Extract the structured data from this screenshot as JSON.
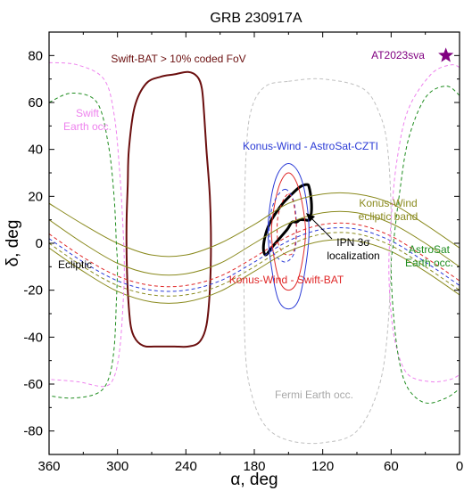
{
  "chart_data": {
    "type": "line",
    "title": "GRB 230917A",
    "xlabel": "α, deg",
    "ylabel": "δ, deg",
    "xlim": [
      360,
      0
    ],
    "ylim": [
      -90,
      90
    ],
    "x_ticks": [
      360,
      300,
      240,
      180,
      120,
      60,
      0
    ],
    "y_ticks": [
      80,
      60,
      40,
      20,
      0,
      -20,
      -40,
      -60,
      -80
    ],
    "colors": {
      "swift_bat": "#6b0f0f",
      "konus_astrosat": "#2b3bd6",
      "konus_swift": "#e02828",
      "ipn": "#000000",
      "ecliptic": "#8a8a1e",
      "swift_earth": "#ee82ee",
      "astrosat_earth": "#1e8c1e",
      "fermi_earth": "#c0c0c0",
      "transient": "#800080"
    },
    "annotations": {
      "swift_bat_fov": "Swift-BAT > 10% coded FoV",
      "transient": "AT2023sva",
      "swift_earth": "Swift\nEarth occ.",
      "konus_astrosat": "Konus-Wind - AstroSat-CZTI",
      "konus_ecliptic_band": "Konus-Wind\necliptic band",
      "ipn": "IPN 3σ\nlocalization",
      "astrosat_earth": "AstroSat\nEarth occ.",
      "ecliptic": "Ecliptic",
      "konus_swift": "Konus-Wind - Swift-BAT",
      "fermi_earth": "Fermi Earth occ."
    },
    "series": [
      {
        "key": "swift_bat",
        "style": "solid",
        "closed": true,
        "x": [
          290,
          291,
          292,
          292,
          291,
          289,
          287,
          284,
          280,
          275,
          268,
          260,
          250,
          238,
          228,
          222,
          219,
          218,
          219,
          222,
          224,
          226,
          230,
          238,
          250,
          262,
          275,
          285,
          290
        ],
        "y": [
          40,
          25,
          10,
          -5,
          -20,
          -33,
          -38,
          -41,
          -43,
          -44,
          -44,
          -44,
          -44,
          -44,
          -42,
          -35,
          -20,
          0,
          20,
          40,
          55,
          66,
          71,
          73,
          72,
          71,
          68,
          58,
          40
        ]
      },
      {
        "key": "ipn",
        "style": "thick",
        "closed": true,
        "x": [
          132,
          134,
          140,
          147,
          155,
          161,
          166,
          170,
          172,
          170,
          165,
          158,
          151,
          147,
          143,
          140,
          136,
          132,
          130,
          130,
          132
        ],
        "y": [
          24,
          25,
          24,
          21,
          17,
          13,
          9,
          4,
          -2,
          -5,
          -2,
          2,
          6,
          9,
          9,
          10,
          10,
          10,
          13,
          18,
          24
        ]
      },
      {
        "key": "konus_astrosat",
        "style": "solid",
        "closed": true,
        "x": [
          150,
          141,
          135,
          132,
          135,
          141,
          150,
          159,
          165,
          168,
          165,
          159,
          150
        ],
        "y": [
          34,
          30,
          20,
          5,
          -10,
          -24,
          -28,
          -24,
          -10,
          5,
          20,
          30,
          34
        ]
      },
      {
        "key": "konus_swift",
        "style": "solid",
        "closed": true,
        "x": [
          150,
          143,
          138,
          135,
          138,
          143,
          150,
          157,
          162,
          165,
          162,
          157,
          150
        ],
        "y": [
          30,
          26,
          17,
          5,
          -8,
          -17,
          -20,
          -17,
          -8,
          5,
          17,
          26,
          30
        ]
      },
      {
        "key": "konus_astrosat",
        "style": "dashed",
        "closed": true,
        "x": [
          153,
          147,
          144,
          143,
          144,
          147,
          153,
          160,
          165,
          167,
          165,
          160,
          153
        ],
        "y": [
          23,
          20,
          14,
          6,
          -2,
          -6,
          -8,
          -6,
          -2,
          6,
          14,
          20,
          23
        ]
      },
      {
        "key": "konus_swift",
        "style": "dashed",
        "closed": true,
        "x": [
          150,
          146,
          144,
          143,
          144,
          146,
          150,
          155,
          159,
          160,
          159,
          155,
          150
        ],
        "y": [
          21,
          18,
          12,
          6,
          0,
          -4,
          -5,
          -4,
          0,
          6,
          12,
          18,
          21
        ]
      },
      {
        "key": "ecliptic",
        "style": "solid",
        "closed": false,
        "x": [
          360,
          330,
          300,
          270,
          240,
          210,
          180,
          150,
          120,
          90,
          60,
          30,
          0
        ],
        "y": [
          10,
          0,
          -8.5,
          -13,
          -13,
          -8.5,
          0,
          8.5,
          13,
          13,
          8.5,
          0,
          -10
        ]
      },
      {
        "key": "ecliptic",
        "style": "solid",
        "closed": false,
        "x": [
          360,
          330,
          300,
          270,
          240,
          210,
          180,
          150,
          120,
          90,
          60,
          30,
          0
        ],
        "y": [
          -2,
          -12,
          -20.5,
          -25,
          -25,
          -20.5,
          -12,
          -3.5,
          1,
          1,
          -3.5,
          -12,
          -22
        ]
      },
      {
        "key": "ecliptic",
        "style": "solid",
        "closed": false,
        "x": [
          360,
          330,
          300,
          270,
          240,
          210,
          180,
          150,
          120,
          90,
          60,
          30,
          0
        ],
        "y": [
          17,
          8,
          0,
          -5,
          -5,
          0,
          8,
          17,
          21,
          21,
          17,
          8,
          -2
        ]
      },
      {
        "key": "ecliptic",
        "style": "dashed",
        "closed": false,
        "x": [
          360,
          330,
          300,
          270,
          240,
          210,
          180,
          150,
          120,
          90,
          60,
          30,
          0
        ],
        "y": [
          0,
          -10,
          -18,
          -22,
          -22,
          -18,
          -10,
          -1,
          4,
          4,
          -1,
          -10,
          -20
        ]
      },
      {
        "key": "konus_astrosat",
        "style": "dashed",
        "closed": false,
        "x": [
          360,
          330,
          300,
          270,
          240,
          210,
          180,
          150,
          120,
          90,
          60,
          30,
          0
        ],
        "y": [
          2,
          -8,
          -16,
          -20,
          -20,
          -16,
          -8,
          1,
          6,
          6,
          1,
          -8,
          -18
        ]
      },
      {
        "key": "konus_swift",
        "style": "dashed",
        "closed": false,
        "x": [
          360,
          330,
          300,
          270,
          240,
          210,
          180,
          150,
          120,
          90,
          60,
          30,
          0
        ],
        "y": [
          4,
          -6,
          -14,
          -18,
          -18,
          -14,
          -6,
          3,
          8,
          8,
          3,
          -6,
          -16
        ]
      },
      {
        "key": "swift_earth",
        "style": "dashed",
        "closed": false,
        "x": [
          360,
          335,
          312,
          303,
          298,
          295,
          294,
          295,
          298,
          303,
          312,
          335,
          360
        ],
        "y": [
          77,
          76,
          70,
          55,
          30,
          5,
          -10,
          -25,
          -45,
          -57,
          -61,
          -59,
          -58
        ]
      },
      {
        "key": "swift_earth",
        "style": "dashed",
        "closed": false,
        "x": [
          0,
          8,
          25,
          45,
          55,
          60,
          62,
          60,
          55,
          45,
          25,
          8,
          0
        ],
        "y": [
          75,
          76,
          72,
          57,
          35,
          10,
          -10,
          -30,
          -45,
          -56,
          -59,
          -58,
          -56
        ]
      },
      {
        "key": "astrosat_earth",
        "style": "dashed",
        "closed": false,
        "x": [
          360,
          340,
          318,
          308,
          303,
          301,
          300,
          301,
          303,
          308,
          318,
          340,
          360
        ],
        "y": [
          60,
          64,
          60,
          42,
          20,
          0,
          -10,
          -25,
          -45,
          -58,
          -64,
          -66,
          -65
        ]
      },
      {
        "key": "astrosat_earth",
        "style": "dashed",
        "closed": false,
        "x": [
          0,
          12,
          30,
          45,
          53,
          58,
          60,
          58,
          53,
          45,
          30,
          12,
          0
        ],
        "y": [
          63,
          67,
          62,
          44,
          20,
          0,
          -10,
          -30,
          -50,
          -62,
          -68,
          -66,
          -62
        ]
      },
      {
        "key": "fermi_earth",
        "style": "dashed",
        "closed": true,
        "x": [
          150,
          120,
          85,
          70,
          63,
          60,
          62,
          70,
          90,
          120,
          150,
          170,
          182,
          188,
          189,
          187,
          182,
          170,
          150
        ],
        "y": [
          69,
          70,
          66,
          55,
          40,
          10,
          -30,
          -60,
          -80,
          -85,
          -84,
          -78,
          -65,
          -45,
          0,
          40,
          58,
          67,
          69
        ]
      }
    ],
    "points": [
      {
        "key": "transient",
        "x": 12,
        "y": 80,
        "marker": "star"
      }
    ]
  }
}
